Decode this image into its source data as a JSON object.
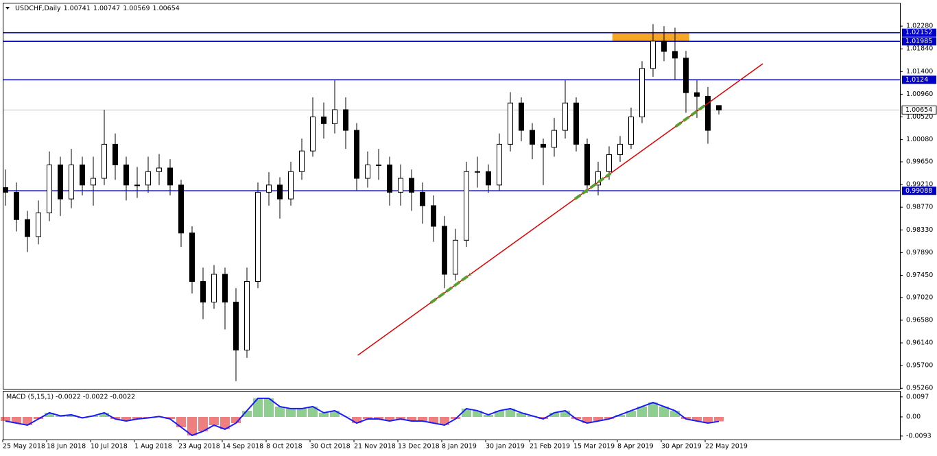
{
  "chart_data": {
    "type": "candlestick",
    "symbol": "USDCHF,Daily",
    "categories": [
      "25 May 2018",
      null,
      null,
      null,
      "18 Jun 2018",
      null,
      null,
      null,
      "10 Jul 2018",
      null,
      null,
      null,
      "1 Aug 2018",
      null,
      null,
      null,
      "23 Aug 2018",
      null,
      null,
      null,
      "14 Sep 2018",
      null,
      null,
      null,
      "8 Oct 2018",
      null,
      null,
      null,
      "30 Oct 2018",
      null,
      null,
      null,
      "21 Nov 2018",
      null,
      null,
      null,
      "13 Dec 2018",
      null,
      null,
      null,
      "8 Jan 2019",
      null,
      null,
      null,
      "30 Jan 2019",
      null,
      null,
      null,
      "21 Feb 2019",
      null,
      null,
      null,
      "15 Mar 2019",
      null,
      null,
      null,
      "8 Apr 2019",
      null,
      null,
      null,
      "30 Apr 2019",
      null,
      null,
      null,
      "22 May 2019",
      null
    ],
    "open": [
      0.9915,
      0.9906,
      0.9853,
      0.982,
      0.9866,
      0.9959,
      0.9893,
      0.9959,
      0.992,
      0.9933,
      0.9999,
      0.9959,
      0.992,
      0.992,
      0.9946,
      0.9953,
      0.992,
      0.9827,
      0.9733,
      0.9693,
      0.9747,
      0.9693,
      0.96,
      0.9733,
      0.9906,
      0.992,
      0.9893,
      0.9946,
      0.9986,
      1.0052,
      1.0039,
      1.0066,
      1.0026,
      0.9933,
      0.9959,
      0.9959,
      0.9906,
      0.9933,
      0.9906,
      0.988,
      0.984,
      0.9747,
      0.9813,
      0.9946,
      0.9946,
      0.992,
      0.9999,
      1.0079,
      1.0026,
      0.9999,
      0.9993,
      1.0026,
      1.0079,
      0.9999,
      0.992,
      0.9946,
      0.9979,
      0.9999,
      1.0052,
      1.0146,
      1.0199,
      1.0179,
      1.0166,
      1.0099,
      1.0092,
      1.00741
    ],
    "high": [
      0.995,
      0.9925,
      0.987,
      0.989,
      0.9985,
      0.9975,
      0.999,
      0.9975,
      0.9975,
      1.0066,
      1.002,
      0.9975,
      0.9955,
      0.9975,
      0.998,
      0.997,
      0.993,
      0.984,
      0.976,
      0.9765,
      0.976,
      0.972,
      0.976,
      0.9925,
      0.9945,
      0.9935,
      0.9965,
      1.001,
      1.009,
      1.008,
      1.0124,
      1.009,
      1.004,
      0.9985,
      0.999,
      0.9975,
      0.996,
      0.995,
      0.9925,
      0.99,
      0.986,
      0.9835,
      0.9965,
      0.9975,
      0.996,
      1.002,
      1.01,
      1.009,
      1.004,
      1.001,
      1.005,
      1.0124,
      1.009,
      1.001,
      0.9965,
      0.9995,
      1.0015,
      1.007,
      1.016,
      1.0232,
      1.0228,
      1.0225,
      1.018,
      1.0124,
      1.011,
      1.00747
    ],
    "low": [
      0.988,
      0.983,
      0.979,
      0.9805,
      0.985,
      0.986,
      0.9875,
      0.99,
      0.988,
      0.992,
      0.993,
      0.989,
      0.9895,
      0.9905,
      0.992,
      0.99,
      0.98,
      0.971,
      0.966,
      0.968,
      0.964,
      0.954,
      0.9585,
      0.972,
      0.988,
      0.9855,
      0.988,
      0.993,
      0.9975,
      1.001,
      1.002,
      0.999,
      0.991,
      0.9915,
      0.993,
      0.988,
      0.988,
      0.987,
      0.9845,
      0.981,
      0.972,
      0.9735,
      0.98,
      0.9915,
      0.9905,
      0.991,
      0.9985,
      1.0005,
      0.997,
      0.992,
      0.9975,
      1.001,
      0.9985,
      0.9905,
      0.99,
      0.993,
      0.9965,
      0.999,
      1.004,
      1.013,
      1.016,
      1.0125,
      1.006,
      1.005,
      1.0,
      1.00569
    ],
    "close": [
      0.9906,
      0.9853,
      0.982,
      0.9866,
      0.9959,
      0.9893,
      0.9959,
      0.992,
      0.9933,
      0.9999,
      0.9959,
      0.992,
      0.992,
      0.9946,
      0.9953,
      0.992,
      0.9827,
      0.9733,
      0.9693,
      0.9747,
      0.9693,
      0.96,
      0.9733,
      0.9906,
      0.992,
      0.9893,
      0.9946,
      0.9986,
      1.0052,
      1.0039,
      1.0066,
      1.0026,
      0.9933,
      0.9959,
      0.9959,
      0.9906,
      0.9933,
      0.9906,
      0.988,
      0.984,
      0.9747,
      0.9813,
      0.9946,
      0.9946,
      0.992,
      0.9999,
      1.0079,
      1.0026,
      0.9999,
      0.9993,
      1.0026,
      1.0079,
      0.9999,
      0.992,
      0.9946,
      0.9979,
      0.9999,
      1.0052,
      1.0146,
      1.0199,
      1.0179,
      1.0166,
      1.0099,
      1.0092,
      1.0026,
      1.00654
    ],
    "up_color": "#ffffff",
    "down_color": "#000000",
    "ylim": [
      0.9525,
      1.0272
    ],
    "yticks": [
      {
        "value": 1.0228,
        "label": "1.02280"
      },
      {
        "value": 1.0184,
        "label": "1.01840"
      },
      {
        "value": 1.014,
        "label": "1.01400"
      },
      {
        "value": 1.0096,
        "label": "1.00960"
      },
      {
        "value": 1.0052,
        "label": "1.00520"
      },
      {
        "value": 1.0008,
        "label": "1.00080"
      },
      {
        "value": 0.9965,
        "label": "0.99650"
      },
      {
        "value": 0.9921,
        "label": "0.99210"
      },
      {
        "value": 0.9877,
        "label": "0.98770"
      },
      {
        "value": 0.9833,
        "label": "0.98330"
      },
      {
        "value": 0.9789,
        "label": "0.97890"
      },
      {
        "value": 0.9745,
        "label": "0.97450"
      },
      {
        "value": 0.9702,
        "label": "0.97020"
      },
      {
        "value": 0.9658,
        "label": "0.96580"
      },
      {
        "value": 0.9614,
        "label": "0.96140"
      },
      {
        "value": 0.957,
        "label": "0.95700"
      },
      {
        "value": 0.9526,
        "label": "0.95260"
      }
    ],
    "levels": [
      1.02152,
      1.01985,
      1.0124,
      0.99088
    ],
    "level_color": "#0000c8",
    "zone": {
      "x": [
        55.3,
        62.3
      ],
      "color": "#f5a623"
    },
    "trendline": {
      "x": [
        32.1,
        69
      ],
      "y": [
        0.959,
        1.0155
      ],
      "color": "#e00000"
    },
    "macd": {
      "title": "MACD (5,15,1) -0.0022 -0.0022 -0.0022",
      "values": [
        -0.002,
        -0.003,
        -0.004,
        -0.001,
        0.002,
        0.0005,
        0.001,
        -0.0005,
        0.0005,
        0.002,
        -0.001,
        -0.002,
        -0.001,
        -0.0005,
        0.0002,
        -0.001,
        -0.005,
        -0.009,
        -0.007,
        -0.004,
        -0.006,
        -0.003,
        0.003,
        0.009,
        0.009,
        0.005,
        0.004,
        0.004,
        0.005,
        0.002,
        0.003,
        0.0001,
        -0.003,
        -0.001,
        -0.001,
        -0.002,
        -0.001,
        -0.002,
        -0.002,
        -0.003,
        -0.004,
        -0.001,
        0.004,
        0.003,
        0.001,
        0.003,
        0.004,
        0.002,
        0.0005,
        -0.001,
        0.002,
        0.003,
        -0.001,
        -0.003,
        -0.002,
        -0.001,
        0.001,
        0.003,
        0.005,
        0.007,
        0.005,
        0.003,
        -0.001,
        -0.002,
        -0.003,
        -0.0022
      ],
      "ylim": [
        -0.011,
        0.0123
      ],
      "yticks": [
        0.0097,
        {
          "value": 0,
          "label": "0.00"
        },
        -0.0093
      ],
      "up_color": "#1e9e1e",
      "down_color": "#e00000",
      "line_color": "#1a1aff"
    }
  }
}
